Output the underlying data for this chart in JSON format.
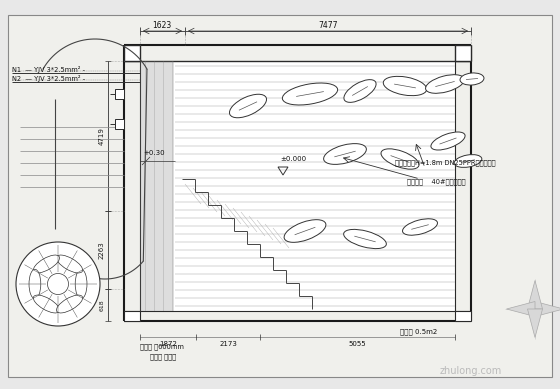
{
  "bg_color": "#e8e8e8",
  "draw_bg": "#f0f0ec",
  "line_color": "#2a2a2a",
  "dim_color": "#2a2a2a",
  "text_color": "#1a1a1a",
  "annotation1": "出水孔高射H=1.8m DN25PPR管穿至顶项",
  "annotation2": "喷水幕布    40#排水泵一台",
  "label_n1": "N1  — YJV 3*2.5mm² -",
  "label_n2": "N2  — YJV 3*2.5mm² -",
  "label_plus030": "+0.30",
  "label_e000": "±0.000",
  "label_bottom1": "溢水口 离600mm",
  "label_bottom2": "溢水口 平排底",
  "label_right": "无机路 0.5m2",
  "dim_1623": "1623",
  "dim_7477": "7477",
  "dim_4719": "4719",
  "dim_2263": "2263",
  "dim_618": "618",
  "dim_1872": "1872",
  "dim_2173": "2173",
  "dim_5055": "5055",
  "watermark": "zhulong.com"
}
